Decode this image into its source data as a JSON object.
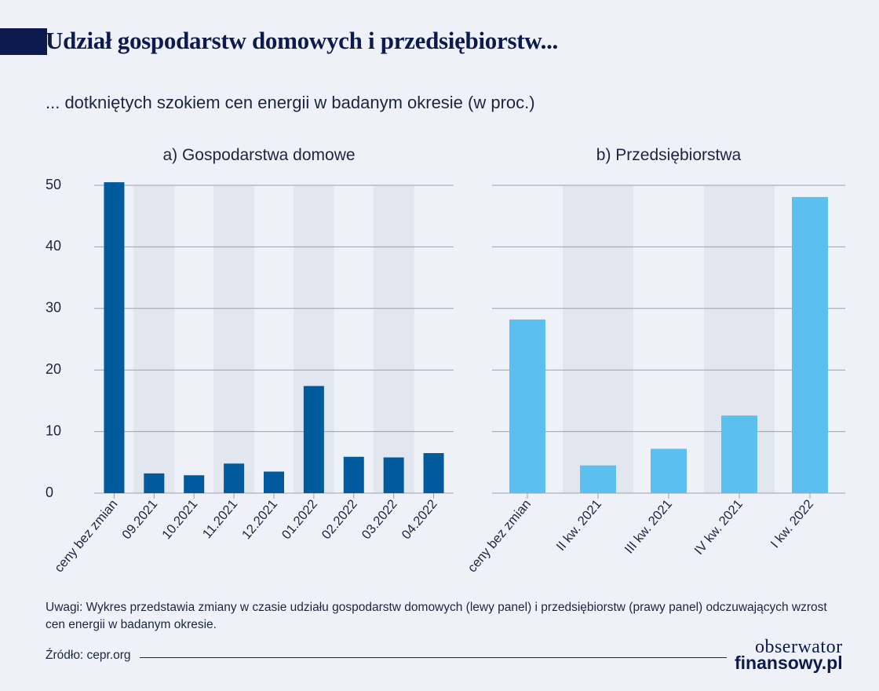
{
  "header": {
    "title": "Udział gospodarstw domowych i przedsiębiorstw...",
    "subtitle": "... dotkniętych szokiem cen energii w badanym okresie (w proc.)"
  },
  "chart_data": [
    {
      "type": "bar",
      "title": "a) Gospodarstwa domowe",
      "categories": [
        "ceny bez zmian",
        "09.2021",
        "10.2021",
        "11.2021",
        "12.2021",
        "01.2022",
        "02.2022",
        "03.2022",
        "04.2022"
      ],
      "values": [
        50.5,
        3.2,
        2.9,
        4.8,
        3.5,
        17.4,
        5.9,
        5.8,
        6.5
      ],
      "ylim": [
        0,
        50
      ],
      "yticks": [
        0,
        10,
        20,
        30,
        40,
        50
      ],
      "color": "#005a9c",
      "grid": true,
      "shaded_categories": [
        1,
        3,
        5,
        7
      ]
    },
    {
      "type": "bar",
      "title": "b) Przedsiębiorstwa",
      "categories": [
        "ceny bez zmian",
        "II kw. 2021",
        "III kw. 2021",
        "IV kw. 2021",
        "I kw. 2022"
      ],
      "values": [
        28.2,
        4.5,
        7.2,
        12.6,
        48.1
      ],
      "ylim": [
        0,
        50
      ],
      "yticks": [
        0,
        10,
        20,
        30,
        40,
        50
      ],
      "color": "#5bc0f0",
      "grid": true,
      "shaded_categories": [
        1,
        3
      ]
    }
  ],
  "footer": {
    "note": "Uwagi: Wykres przedstawia zmiany w czasie udziału gospodarstw domowych (lewy panel) i przedsiębiorstw (prawy panel) odczuwających wzrost cen energii w badanym okresie.",
    "source": "Źródło: cepr.org",
    "logo_line1": "obserwator",
    "logo_line2": "finansowy.pl"
  },
  "colors": {
    "background": "#eef2f8",
    "shade": "#e1e6ef",
    "grid": "#9aa1ad",
    "text": "#1b2540",
    "brand": "#0d1a4e"
  }
}
